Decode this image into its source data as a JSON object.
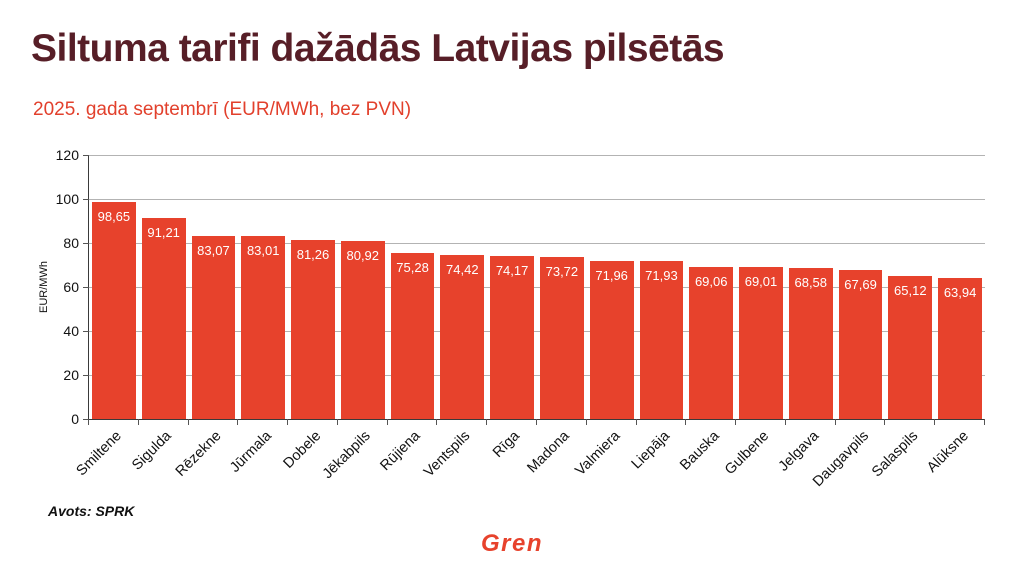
{
  "header": {
    "title": "Siltuma tarifi dažādās Latvijas pilsētās",
    "subtitle": "2025. gada septembrī (EUR/MWh, bez PVN)"
  },
  "chart_data": {
    "type": "bar",
    "title": "Siltuma tarifi dažādās Latvijas pilsētās",
    "subtitle": "2025. gada septembrī (EUR/MWh, bez PVN)",
    "categories": [
      "Smiltene",
      "Sigulda",
      "Rēzekne",
      "Jūrmala",
      "Dobele",
      "Jēkabpils",
      "Rūjiena",
      "Ventspils",
      "Rīga",
      "Madona",
      "Valmiera",
      "Liepāja",
      "Bauska",
      "Gulbene",
      "Jelgava",
      "Daugavpils",
      "Salaspils",
      "Alūksne"
    ],
    "values": [
      98.65,
      91.21,
      83.07,
      83.01,
      81.26,
      80.92,
      75.28,
      74.42,
      74.17,
      73.72,
      71.96,
      71.93,
      69.06,
      69.01,
      68.58,
      67.69,
      65.12,
      63.94
    ],
    "value_labels": [
      "98,65",
      "91,21",
      "83,07",
      "83,01",
      "81,26",
      "80,92",
      "75,28",
      "74,42",
      "74,17",
      "73,72",
      "71,96",
      "71,93",
      "69,06",
      "69,01",
      "68,58",
      "67,69",
      "65,12",
      "63,94"
    ],
    "xlabel": "",
    "ylabel": "EUR/MWh",
    "ylim": [
      0,
      120
    ],
    "yticks": [
      0,
      20,
      40,
      60,
      80,
      100,
      120
    ],
    "grid": "horizontal",
    "legend": "none",
    "x_label_rotation": -45
  },
  "footer": {
    "source": "Avots: SPRK",
    "brand": "Gren"
  },
  "colors": {
    "title": "#571e27",
    "accent": "#e2402c",
    "bar": "#e7422c",
    "bar_value_text": "#ffffff",
    "grid": "#b3b3b3",
    "axis": "#3a3a3a",
    "background": "#ffffff"
  }
}
